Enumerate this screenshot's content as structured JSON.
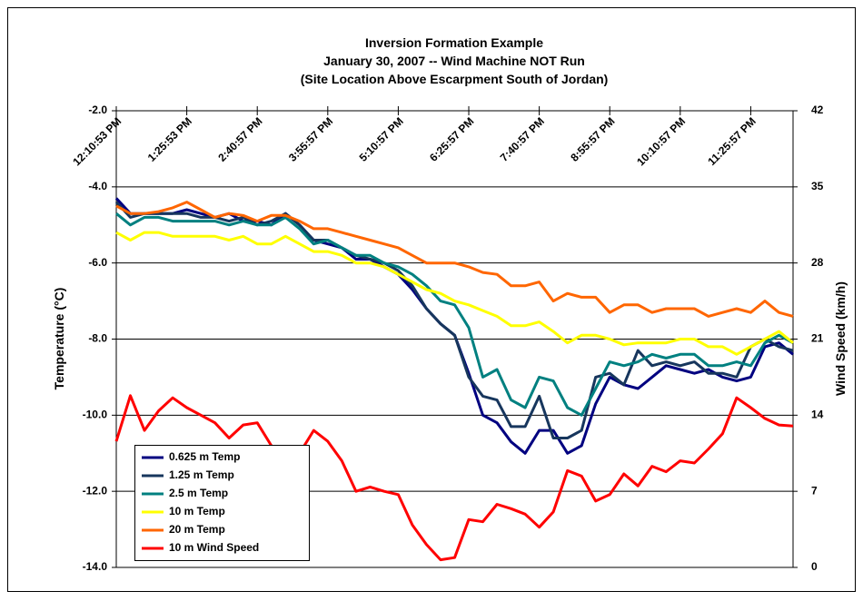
{
  "chart_data": {
    "type": "line",
    "title": [
      "Inversion Formation Example",
      "January 30, 2007 -- Wind Machine NOT Run",
      "(Site Location Above Escarpment South of Jordan)"
    ],
    "y_label": "Temperature (°C)",
    "y2_label": "Wind Speed (km/h)",
    "categories": [
      "12:10:53 PM",
      null,
      null,
      null,
      null,
      "1:25:53 PM",
      null,
      null,
      null,
      null,
      "2:40:57 PM",
      null,
      null,
      null,
      null,
      "3:55:57 PM",
      null,
      null,
      null,
      null,
      "5:10:57 PM",
      null,
      null,
      null,
      null,
      "6:25:57 PM",
      null,
      null,
      null,
      null,
      "7:40:57 PM",
      null,
      null,
      null,
      null,
      "8:55:57 PM",
      null,
      null,
      null,
      null,
      "10:10:57 PM",
      null,
      null,
      null,
      null,
      "11:25:57 PM",
      null,
      null,
      null
    ],
    "ylim": [
      -14,
      -2
    ],
    "yticks": [
      {
        "value": -14,
        "label": "-14.0"
      },
      {
        "value": -12,
        "label": "-12.0"
      },
      {
        "value": -10,
        "label": "-10.0"
      },
      {
        "value": -8,
        "label": "-8.0"
      },
      {
        "value": -6,
        "label": "-6.0"
      },
      {
        "value": -4,
        "label": "-4.0"
      },
      {
        "value": -2,
        "label": "-2.0"
      }
    ],
    "y2lim": [
      0,
      42
    ],
    "y2ticks": [
      0,
      7,
      14,
      21,
      28,
      35,
      42
    ],
    "grid": true,
    "legend": "lower left",
    "series": [
      {
        "name": "0.625 m Temp",
        "color": "#000080",
        "values": [
          -4.3,
          -4.7,
          -4.7,
          -4.7,
          -4.7,
          -4.6,
          -4.7,
          -4.8,
          -4.7,
          -4.9,
          -4.9,
          -5.0,
          -4.7,
          -5.0,
          -5.4,
          -5.5,
          -5.6,
          -5.9,
          -5.9,
          -6.1,
          -6.3,
          -6.7,
          -7.2,
          -7.6,
          -7.9,
          -8.9,
          -10.0,
          -10.2,
          -10.7,
          -11.0,
          -10.4,
          -10.4,
          -11.0,
          -10.8,
          -9.7,
          -9.0,
          -9.2,
          -9.3,
          -9.0,
          -8.7,
          -8.8,
          -8.9,
          -8.8,
          -9.0,
          -9.1,
          -9.0,
          -8.2,
          -8.1,
          -8.4
        ]
      },
      {
        "name": "1.25 m Temp",
        "color": "#17365d",
        "values": [
          -4.4,
          -4.8,
          -4.7,
          -4.7,
          -4.7,
          -4.7,
          -4.8,
          -4.8,
          -4.9,
          -4.8,
          -5.0,
          -4.9,
          -4.7,
          -5.0,
          -5.4,
          -5.4,
          -5.6,
          -5.8,
          -5.9,
          -6.0,
          -6.2,
          -6.6,
          -7.2,
          -7.6,
          -7.9,
          -9.0,
          -9.5,
          -9.6,
          -10.3,
          -10.3,
          -9.5,
          -10.6,
          -10.6,
          -10.4,
          -9.0,
          -8.9,
          -9.2,
          -8.3,
          -8.7,
          -8.6,
          -8.7,
          -8.6,
          -8.9,
          -8.9,
          -9.0,
          -8.2,
          -8.0,
          -8.2,
          -8.3
        ]
      },
      {
        "name": "2.5 m Temp",
        "color": "#008080",
        "values": [
          -4.7,
          -5.0,
          -4.8,
          -4.8,
          -4.9,
          -4.9,
          -4.9,
          -4.9,
          -5.0,
          -4.9,
          -5.0,
          -5.0,
          -4.8,
          -5.1,
          -5.5,
          -5.4,
          -5.6,
          -5.8,
          -5.8,
          -6.0,
          -6.1,
          -6.3,
          -6.6,
          -7.0,
          -7.1,
          -7.7,
          -9.0,
          -8.8,
          -9.6,
          -9.8,
          -9.0,
          -9.1,
          -9.8,
          -10.0,
          -9.3,
          -8.6,
          -8.7,
          -8.6,
          -8.4,
          -8.5,
          -8.4,
          -8.4,
          -8.7,
          -8.7,
          -8.6,
          -8.7,
          -8.1,
          -7.9,
          -8.1
        ]
      },
      {
        "name": "10 m Temp",
        "color": "#ffff00",
        "values": [
          -5.2,
          -5.4,
          -5.2,
          -5.2,
          -5.3,
          -5.3,
          -5.3,
          -5.3,
          -5.4,
          -5.3,
          -5.5,
          -5.5,
          -5.3,
          -5.5,
          -5.7,
          -5.7,
          -5.8,
          -6.0,
          -6.0,
          -6.1,
          -6.3,
          -6.5,
          -6.7,
          -6.8,
          -7.0,
          -7.1,
          -7.25,
          -7.4,
          -7.65,
          -7.65,
          -7.55,
          -7.8,
          -8.1,
          -7.9,
          -7.9,
          -8.0,
          -8.15,
          -8.1,
          -8.1,
          -8.1,
          -8.0,
          -8.0,
          -8.2,
          -8.2,
          -8.4,
          -8.2,
          -8.0,
          -7.8,
          -8.1
        ]
      },
      {
        "name": "20 m Temp",
        "color": "#ff6600",
        "values": [
          -4.5,
          -4.7,
          -4.7,
          -4.65,
          -4.55,
          -4.4,
          -4.6,
          -4.8,
          -4.7,
          -4.75,
          -4.9,
          -4.75,
          -4.75,
          -4.9,
          -5.1,
          -5.1,
          -5.2,
          -5.3,
          -5.4,
          -5.5,
          -5.6,
          -5.8,
          -6.0,
          -6.0,
          -6.0,
          -6.1,
          -6.25,
          -6.3,
          -6.6,
          -6.6,
          -6.5,
          -7.0,
          -6.8,
          -6.9,
          -6.9,
          -7.3,
          -7.1,
          -7.1,
          -7.3,
          -7.2,
          -7.2,
          -7.2,
          -7.4,
          -7.3,
          -7.2,
          -7.3,
          -7.0,
          -7.3,
          -7.4
        ]
      },
      {
        "name": "10 m Wind Speed",
        "color": "#ff0000",
        "axis": "y2",
        "values": [
          11.6,
          15.8,
          12.6,
          14.4,
          15.6,
          14.7,
          14.0,
          13.3,
          11.9,
          13.1,
          13.3,
          11.2,
          10.2,
          10.5,
          12.6,
          11.6,
          9.8,
          7.0,
          7.4,
          7.0,
          6.7,
          3.9,
          2.1,
          0.7,
          0.9,
          4.4,
          4.2,
          5.8,
          5.4,
          4.9,
          3.7,
          5.1,
          8.9,
          8.4,
          6.1,
          6.7,
          8.6,
          7.5,
          9.3,
          8.8,
          9.8,
          9.6,
          10.9,
          12.3,
          15.6,
          14.7,
          13.7,
          13.1,
          13.0
        ]
      }
    ]
  }
}
